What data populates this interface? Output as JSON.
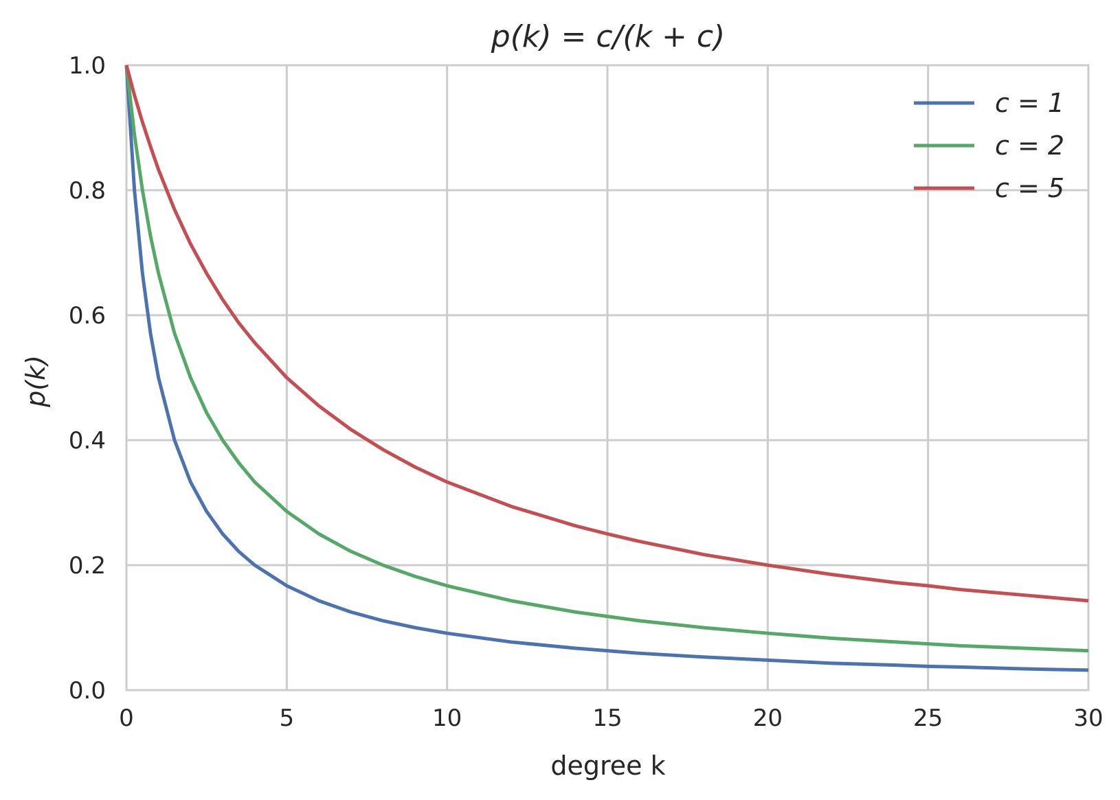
{
  "chart_data": {
    "type": "line",
    "title": "p(k) = c/(k + c)",
    "xlabel": "degree k",
    "ylabel": "p(k)",
    "xlim": [
      0,
      30
    ],
    "ylim": [
      0.0,
      1.0
    ],
    "x_ticks": [
      0,
      5,
      10,
      15,
      20,
      25,
      30
    ],
    "x_tick_labels": [
      "0",
      "5",
      "10",
      "15",
      "20",
      "25",
      "30"
    ],
    "y_ticks": [
      0.0,
      0.2,
      0.4,
      0.6,
      0.8,
      1.0
    ],
    "y_tick_labels": [
      "0.0",
      "0.2",
      "0.4",
      "0.6",
      "0.8",
      "1.0"
    ],
    "grid": true,
    "legend_position": "top-right",
    "x": [
      0,
      0.25,
      0.5,
      0.75,
      1,
      1.5,
      2,
      2.5,
      3,
      3.5,
      4,
      5,
      6,
      7,
      8,
      9,
      10,
      12,
      14,
      15,
      16,
      18,
      20,
      22,
      24,
      25,
      26,
      28,
      30
    ],
    "series": [
      {
        "name": "c = 1",
        "color": "#4c72b0",
        "values": [
          1.0,
          0.8,
          0.667,
          0.571,
          0.5,
          0.4,
          0.333,
          0.286,
          0.25,
          0.222,
          0.2,
          0.167,
          0.143,
          0.125,
          0.111,
          0.1,
          0.091,
          0.077,
          0.067,
          0.063,
          0.059,
          0.053,
          0.048,
          0.043,
          0.04,
          0.038,
          0.037,
          0.034,
          0.032
        ]
      },
      {
        "name": "c = 2",
        "color": "#55a868",
        "values": [
          1.0,
          0.889,
          0.8,
          0.727,
          0.667,
          0.571,
          0.5,
          0.444,
          0.4,
          0.364,
          0.333,
          0.286,
          0.25,
          0.222,
          0.2,
          0.182,
          0.167,
          0.143,
          0.125,
          0.118,
          0.111,
          0.1,
          0.091,
          0.083,
          0.077,
          0.074,
          0.071,
          0.067,
          0.063
        ]
      },
      {
        "name": "c = 5",
        "color": "#c44e52",
        "values": [
          1.0,
          0.952,
          0.909,
          0.87,
          0.833,
          0.769,
          0.714,
          0.667,
          0.625,
          0.588,
          0.556,
          0.5,
          0.455,
          0.417,
          0.385,
          0.357,
          0.333,
          0.294,
          0.263,
          0.25,
          0.238,
          0.217,
          0.2,
          0.185,
          0.172,
          0.167,
          0.161,
          0.152,
          0.143
        ]
      }
    ]
  }
}
